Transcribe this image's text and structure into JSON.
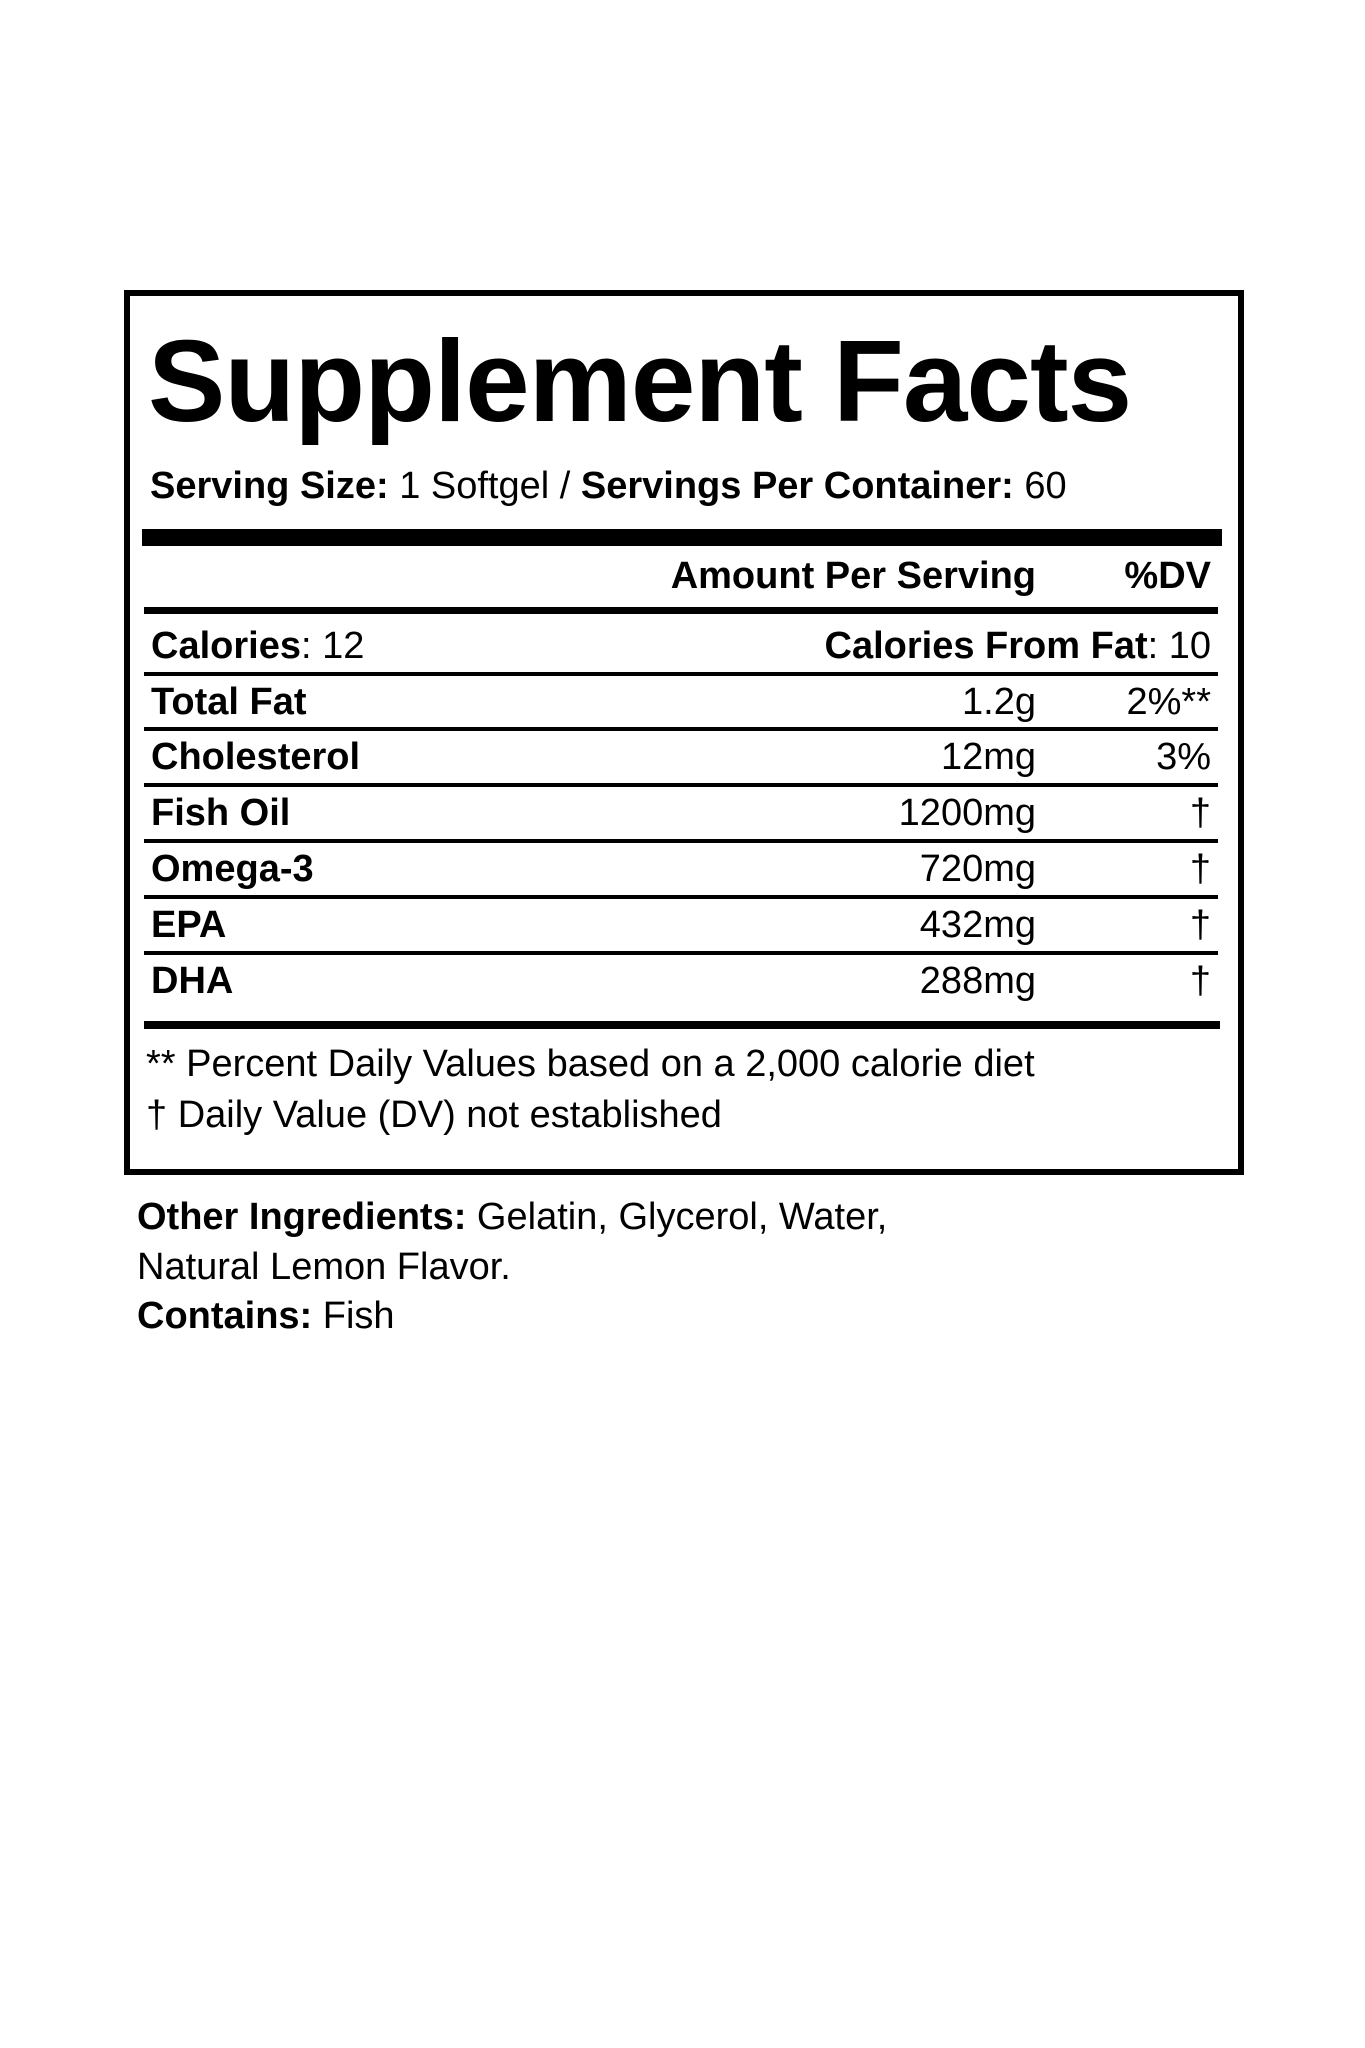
{
  "title": "Supplement Facts",
  "serving": {
    "size_label": "Serving Size:",
    "size_value": " 1 Softgel / ",
    "per_container_label": "Servings Per Container:",
    "per_container_value": " 60"
  },
  "header": {
    "amount": "Amount Per Serving",
    "dv": "%DV"
  },
  "calories": {
    "label": "Calories",
    "value": ": 12",
    "fat_label": "Calories From Fat",
    "fat_value": ": 10"
  },
  "rows": [
    {
      "name": "Total Fat",
      "amount": "1.2g",
      "dv": "2%**"
    },
    {
      "name": "Cholesterol",
      "amount": "12mg",
      "dv": "3%"
    },
    {
      "name": "Fish Oil",
      "amount": "1200mg",
      "dv": "†"
    },
    {
      "name": "Omega-3",
      "amount": "720mg",
      "dv": "†"
    },
    {
      "name": "EPA",
      "amount": "432mg",
      "dv": "†"
    },
    {
      "name": "DHA",
      "amount": "288mg",
      "dv": "†"
    }
  ],
  "footnotes": [
    "** Percent Daily Values based on a 2,000 calorie diet",
    "† Daily Value (DV) not established"
  ],
  "other": {
    "label": "Other Ingredients:",
    "value": " Gelatin, Glycerol, Water,",
    "value2": "Natural Lemon Flavor.",
    "contains_label": "Contains:",
    "contains_value": " Fish"
  }
}
